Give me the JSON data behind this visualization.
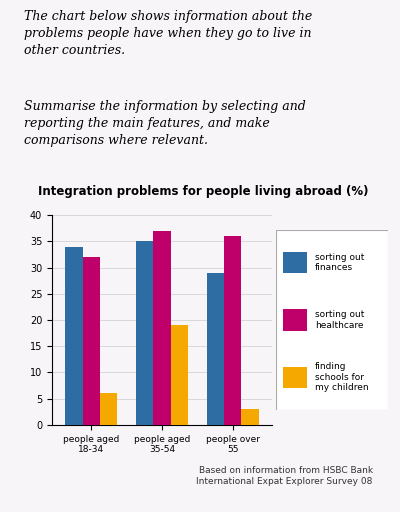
{
  "title": "Integration problems for people living abroad (%)",
  "categories": [
    "people aged\n18-34",
    "people aged\n35-54",
    "people over\n55"
  ],
  "series": {
    "sorting out finances": [
      34,
      35,
      29
    ],
    "sorting out healthcare": [
      32,
      37,
      36
    ],
    "finding schools for\nmy children": [
      6,
      19,
      3
    ]
  },
  "colors": {
    "sorting out finances": "#2e6da4",
    "sorting out healthcare": "#c0006a",
    "finding schools for\nmy children": "#f5a800"
  },
  "ylim": [
    0,
    40
  ],
  "yticks": [
    0,
    5,
    10,
    15,
    20,
    25,
    30,
    35,
    40
  ],
  "background_color": "#f0ecf0",
  "page_color": "#f8f5f8",
  "header_text1": "The chart below shows information about the\nproblems people have when they go to live in\nother countries.",
  "header_text2": "Summarise the information by selecting and\nreporting the main features, and make\ncomparisons where relevant.",
  "footer_text": "Based on information from HSBC Bank\nInternational Expat Explorer Survey 08",
  "legend_labels": [
    "sorting out\nfinances",
    "sorting out\nhealthcare",
    "finding\nschools for\nmy children"
  ]
}
